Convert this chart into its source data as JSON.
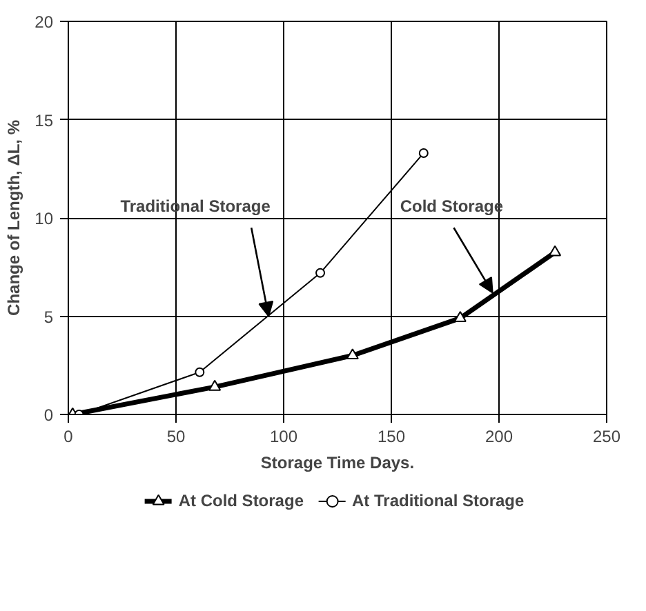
{
  "chart_data": {
    "type": "line",
    "xlabel": "Storage Time Days.",
    "ylabel": "Change of Length, ΔL, %",
    "xlim": [
      0,
      250
    ],
    "xticks": [
      0,
      50,
      100,
      150,
      200,
      250
    ],
    "ylim": [
      0,
      20
    ],
    "yticks": [
      0,
      5,
      10,
      15,
      20
    ],
    "grid": true,
    "legend": "bottom",
    "series": [
      {
        "name": "At Cold Storage",
        "color": "#000000",
        "marker": "triangle",
        "x": [
          2,
          68,
          132,
          182,
          226
        ],
        "values": [
          0,
          1.4,
          3.0,
          4.9,
          8.25
        ]
      },
      {
        "name": "At Traditional Storage",
        "color": "#000000",
        "marker": "circle",
        "x": [
          5,
          61,
          117,
          165
        ],
        "values": [
          0,
          2.15,
          7.2,
          13.3
        ]
      }
    ],
    "annotations": [
      {
        "text": "Traditional Storage",
        "x": 93,
        "y": 5.0
      },
      {
        "text": "Cold Storage",
        "x": 197,
        "y": 6.2
      }
    ]
  }
}
